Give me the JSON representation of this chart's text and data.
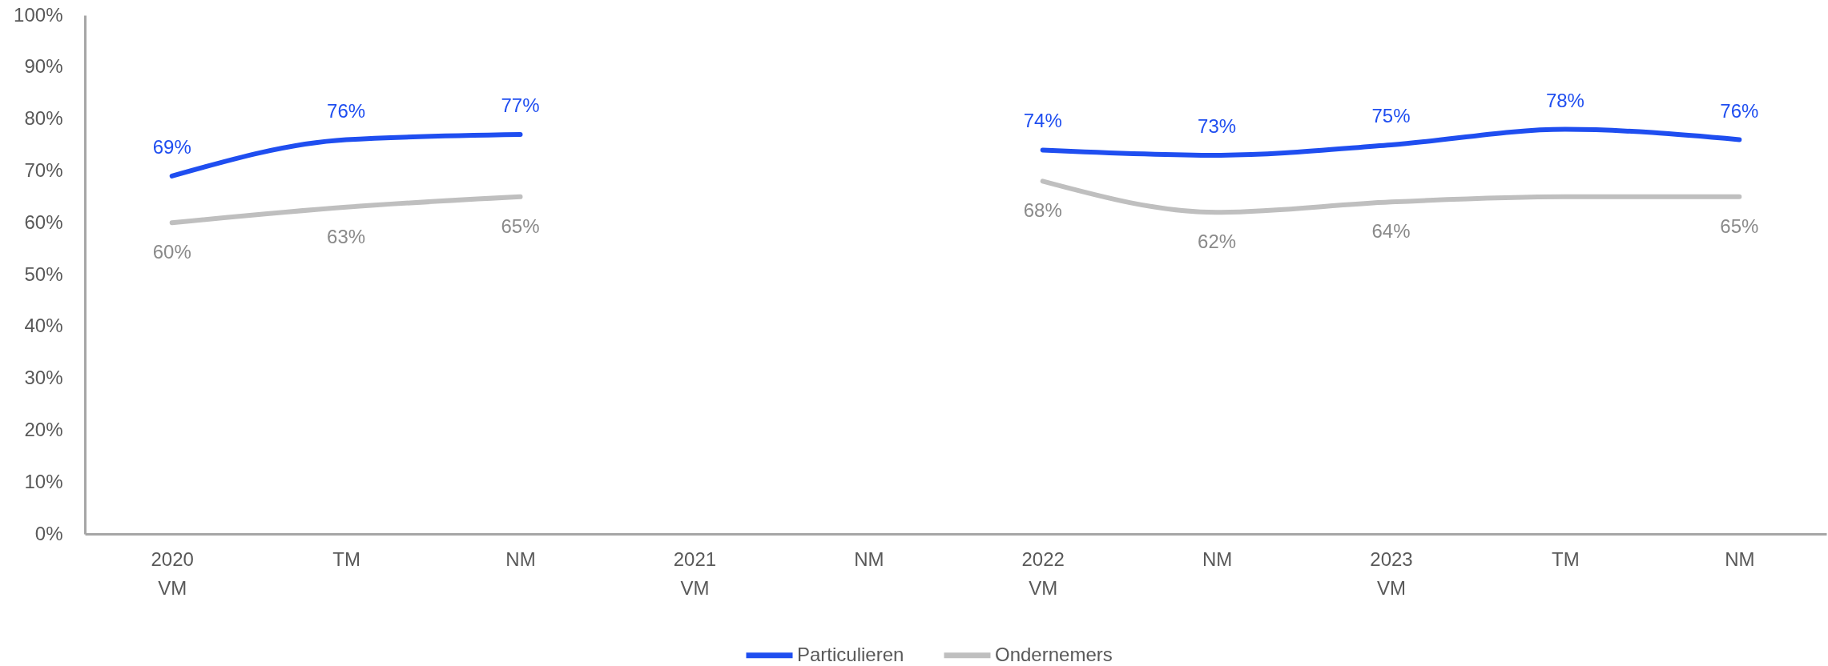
{
  "chart_data": {
    "type": "line",
    "categories": [
      "2020\nVM",
      "TM",
      "NM",
      "2021\nVM",
      "NM",
      "2022\nVM",
      "NM",
      "2023\nVM",
      "TM",
      "NM"
    ],
    "series": [
      {
        "name": "Particulieren",
        "color": "#1f4ef0",
        "values": [
          69,
          76,
          77,
          null,
          null,
          74,
          73,
          75,
          78,
          76
        ],
        "value_labels": [
          "69%",
          "76%",
          "77%",
          null,
          null,
          "74%",
          "73%",
          "75%",
          "78%",
          "76%"
        ]
      },
      {
        "name": "Ondernemers",
        "color": "#bfbfbf",
        "values": [
          60,
          63,
          65,
          null,
          null,
          68,
          62,
          64,
          65,
          65
        ],
        "value_labels": [
          "60%",
          "63%",
          "65%",
          null,
          null,
          "68%",
          "62%",
          "64%",
          null,
          "65%"
        ]
      }
    ],
    "ylim": [
      0,
      100
    ],
    "yticks": [
      {
        "value": 0,
        "label": "0%"
      },
      {
        "value": 10,
        "label": "10%"
      },
      {
        "value": 20,
        "label": "20%"
      },
      {
        "value": 30,
        "label": "30%"
      },
      {
        "value": 40,
        "label": "40%"
      },
      {
        "value": 50,
        "label": "50%"
      },
      {
        "value": 60,
        "label": "60%"
      },
      {
        "value": 70,
        "label": "70%"
      },
      {
        "value": 80,
        "label": "80%"
      },
      {
        "value": 90,
        "label": "90%"
      },
      {
        "value": 100,
        "label": "100%"
      }
    ],
    "legend": "bottom"
  }
}
